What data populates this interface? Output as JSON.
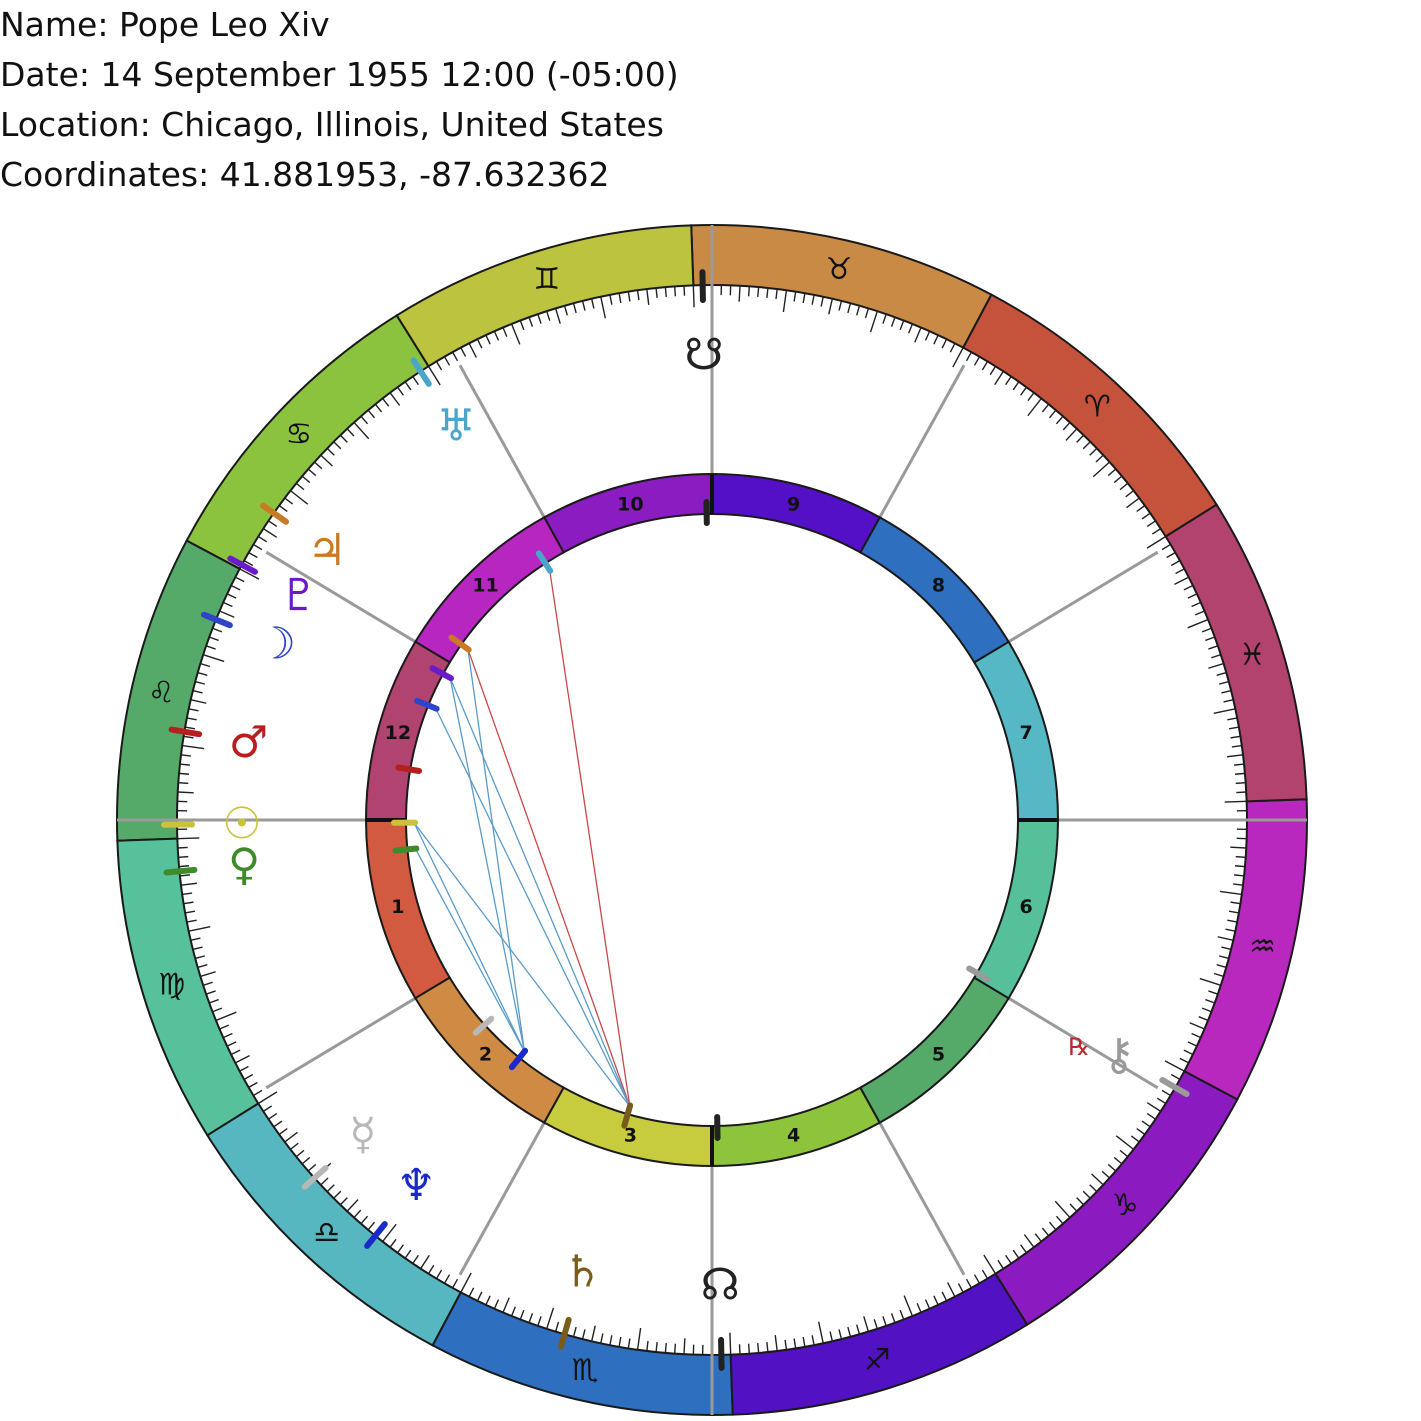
{
  "header": {
    "name": "Name: Pope Leo Xiv",
    "date": "Date: 14 September 1955 12:00 (-05:00)",
    "location": "Location: Chicago, Illinois, United States",
    "coordinates": "Coordinates: 41.881953, -87.632362"
  },
  "signs": [
    {
      "name": "aries",
      "glyph": "♈",
      "color": "#C5533B"
    },
    {
      "name": "taurus",
      "glyph": "♉",
      "color": "#C98A45"
    },
    {
      "name": "gemini",
      "glyph": "♊",
      "color": "#BCC33F"
    },
    {
      "name": "cancer",
      "glyph": "♋",
      "color": "#8BC23E"
    },
    {
      "name": "leo",
      "glyph": "♌",
      "color": "#55AA6A"
    },
    {
      "name": "virgo",
      "glyph": "♍",
      "color": "#56C19A"
    },
    {
      "name": "libra",
      "glyph": "♎",
      "color": "#56B7C1"
    },
    {
      "name": "scorpio",
      "glyph": "♏",
      "color": "#2E6FBF"
    },
    {
      "name": "sagittarius",
      "glyph": "♐",
      "color": "#5212C4"
    },
    {
      "name": "capricorn",
      "glyph": "♑",
      "color": "#8B1BC0"
    },
    {
      "name": "aquarius",
      "glyph": "♒",
      "color": "#B828BE"
    },
    {
      "name": "pisces",
      "glyph": "♓",
      "color": "#B2426E"
    }
  ],
  "ascendant_longitude": 148,
  "midheaven_longitude": 58,
  "houses": [
    {
      "label": "1",
      "color": "#D15A40"
    },
    {
      "label": "2",
      "color": "#CF8A44"
    },
    {
      "label": "3",
      "color": "#C6CC3D"
    },
    {
      "label": "4",
      "color": "#8DC43C"
    },
    {
      "label": "5",
      "color": "#55AA6A"
    },
    {
      "label": "6",
      "color": "#55C09A"
    },
    {
      "label": "7",
      "color": "#55B8C4"
    },
    {
      "label": "8",
      "color": "#2F6FC0"
    },
    {
      "label": "9",
      "color": "#5410C6"
    },
    {
      "label": "10",
      "color": "#8A1CC2"
    },
    {
      "label": "11",
      "color": "#B826C2"
    },
    {
      "label": "12",
      "color": "#B0436F"
    }
  ],
  "house_cusps": [
    148,
    179,
    209,
    238,
    267,
    297,
    328,
    359,
    29,
    58,
    87,
    117
  ],
  "planets": [
    {
      "name": "sun",
      "glyph": "☉",
      "color": "#C9C23A",
      "longitude": 148.5
    },
    {
      "name": "moon",
      "glyph": "☽",
      "color": "#2E45C9",
      "longitude": 126
    },
    {
      "name": "mercury",
      "glyph": "☿",
      "color": "#B8B8B8",
      "longitude": 190
    },
    {
      "name": "venus",
      "glyph": "♀",
      "color": "#3F8A2A",
      "longitude": 153.5
    },
    {
      "name": "mars",
      "glyph": "♂",
      "color": "#B81E1E",
      "longitude": 138.5
    },
    {
      "name": "jupiter",
      "glyph": "♃",
      "color": "#C97A24",
      "longitude": 113
    },
    {
      "name": "saturn",
      "glyph": "♄",
      "color": "#7A5C1A",
      "longitude": 222
    },
    {
      "name": "uranus",
      "glyph": "♅",
      "color": "#4AA6C9",
      "longitude": 91
    },
    {
      "name": "neptune",
      "glyph": "♆",
      "color": "#1A2AC9",
      "longitude": 199
    },
    {
      "name": "pluto",
      "glyph": "♇",
      "color": "#6A1AC9",
      "longitude": 119.5
    },
    {
      "name": "north-node",
      "glyph": "☊",
      "color": "#222222",
      "longitude": 239
    },
    {
      "name": "south-node",
      "glyph": "☋",
      "color": "#222222",
      "longitude": 59
    },
    {
      "name": "chiron",
      "glyph": "⚷",
      "color": "#9A9A9A",
      "longitude": 298,
      "retrograde": "℞",
      "retrograde_color": "#B52A2A"
    }
  ],
  "aspects": [
    {
      "from": "jupiter",
      "to": "neptune",
      "color": "#5B9BC9"
    },
    {
      "from": "jupiter",
      "to": "saturn",
      "color": "#C94848"
    },
    {
      "from": "pluto",
      "to": "neptune",
      "color": "#5B9BC9"
    },
    {
      "from": "pluto",
      "to": "saturn",
      "color": "#5B9BC9"
    },
    {
      "from": "moon",
      "to": "saturn",
      "color": "#5B9BC9"
    },
    {
      "from": "uranus",
      "to": "saturn",
      "color": "#C94848"
    },
    {
      "from": "sun",
      "to": "neptune",
      "color": "#5B9BC9"
    },
    {
      "from": "sun",
      "to": "saturn",
      "color": "#5B9BC9"
    },
    {
      "from": "venus",
      "to": "neptune",
      "color": "#5B9BC9"
    }
  ]
}
